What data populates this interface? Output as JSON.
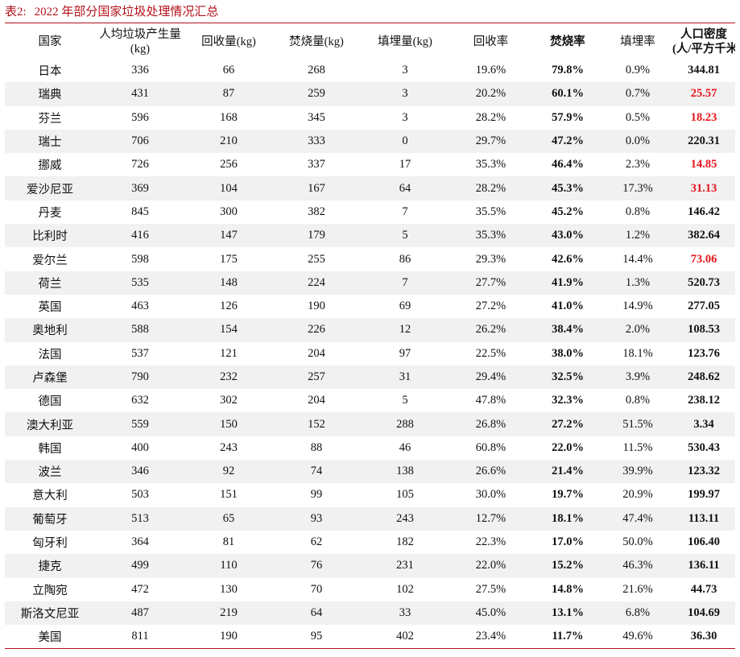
{
  "caption": {
    "number": "表2:",
    "title": "2022 年部分国家垃圾处理情况汇总"
  },
  "colors": {
    "accent": "#b3121c",
    "highlight": "#e8141c",
    "zebra": "#f1f1f1"
  },
  "table": {
    "headers": [
      {
        "text": "国家",
        "bold": false
      },
      {
        "text": "人均垃圾产生量\n(kg)",
        "bold": false
      },
      {
        "text": "回收量(kg)",
        "bold": false
      },
      {
        "text": "焚烧量(kg)",
        "bold": false
      },
      {
        "text": "填埋量(kg)",
        "bold": false
      },
      {
        "text": "回收率",
        "bold": false
      },
      {
        "text": "焚烧率",
        "bold": true
      },
      {
        "text": "填埋率",
        "bold": false
      },
      {
        "text": "人口密度\n(人/平方千米)",
        "bold": true
      }
    ],
    "rows": [
      {
        "country": "日本",
        "per_capita": "336",
        "recycled": "66",
        "incinerated": "268",
        "landfilled": "3",
        "recycle_rate": "19.6%",
        "incineration_rate": "79.8%",
        "landfill_rate": "0.9%",
        "density": "344.81",
        "density_highlight": false
      },
      {
        "country": "瑞典",
        "per_capita": "431",
        "recycled": "87",
        "incinerated": "259",
        "landfilled": "3",
        "recycle_rate": "20.2%",
        "incineration_rate": "60.1%",
        "landfill_rate": "0.7%",
        "density": "25.57",
        "density_highlight": true
      },
      {
        "country": "芬兰",
        "per_capita": "596",
        "recycled": "168",
        "incinerated": "345",
        "landfilled": "3",
        "recycle_rate": "28.2%",
        "incineration_rate": "57.9%",
        "landfill_rate": "0.5%",
        "density": "18.23",
        "density_highlight": true
      },
      {
        "country": "瑞士",
        "per_capita": "706",
        "recycled": "210",
        "incinerated": "333",
        "landfilled": "0",
        "recycle_rate": "29.7%",
        "incineration_rate": "47.2%",
        "landfill_rate": "0.0%",
        "density": "220.31",
        "density_highlight": false
      },
      {
        "country": "挪威",
        "per_capita": "726",
        "recycled": "256",
        "incinerated": "337",
        "landfilled": "17",
        "recycle_rate": "35.3%",
        "incineration_rate": "46.4%",
        "landfill_rate": "2.3%",
        "density": "14.85",
        "density_highlight": true
      },
      {
        "country": "爱沙尼亚",
        "per_capita": "369",
        "recycled": "104",
        "incinerated": "167",
        "landfilled": "64",
        "recycle_rate": "28.2%",
        "incineration_rate": "45.3%",
        "landfill_rate": "17.3%",
        "density": "31.13",
        "density_highlight": true
      },
      {
        "country": "丹麦",
        "per_capita": "845",
        "recycled": "300",
        "incinerated": "382",
        "landfilled": "7",
        "recycle_rate": "35.5%",
        "incineration_rate": "45.2%",
        "landfill_rate": "0.8%",
        "density": "146.42",
        "density_highlight": false
      },
      {
        "country": "比利时",
        "per_capita": "416",
        "recycled": "147",
        "incinerated": "179",
        "landfilled": "5",
        "recycle_rate": "35.3%",
        "incineration_rate": "43.0%",
        "landfill_rate": "1.2%",
        "density": "382.64",
        "density_highlight": false
      },
      {
        "country": "爱尔兰",
        "per_capita": "598",
        "recycled": "175",
        "incinerated": "255",
        "landfilled": "86",
        "recycle_rate": "29.3%",
        "incineration_rate": "42.6%",
        "landfill_rate": "14.4%",
        "density": "73.06",
        "density_highlight": true
      },
      {
        "country": "荷兰",
        "per_capita": "535",
        "recycled": "148",
        "incinerated": "224",
        "landfilled": "7",
        "recycle_rate": "27.7%",
        "incineration_rate": "41.9%",
        "landfill_rate": "1.3%",
        "density": "520.73",
        "density_highlight": false
      },
      {
        "country": "英国",
        "per_capita": "463",
        "recycled": "126",
        "incinerated": "190",
        "landfilled": "69",
        "recycle_rate": "27.2%",
        "incineration_rate": "41.0%",
        "landfill_rate": "14.9%",
        "density": "277.05",
        "density_highlight": false
      },
      {
        "country": "奥地利",
        "per_capita": "588",
        "recycled": "154",
        "incinerated": "226",
        "landfilled": "12",
        "recycle_rate": "26.2%",
        "incineration_rate": "38.4%",
        "landfill_rate": "2.0%",
        "density": "108.53",
        "density_highlight": false
      },
      {
        "country": "法国",
        "per_capita": "537",
        "recycled": "121",
        "incinerated": "204",
        "landfilled": "97",
        "recycle_rate": "22.5%",
        "incineration_rate": "38.0%",
        "landfill_rate": "18.1%",
        "density": "123.76",
        "density_highlight": false
      },
      {
        "country": "卢森堡",
        "per_capita": "790",
        "recycled": "232",
        "incinerated": "257",
        "landfilled": "31",
        "recycle_rate": "29.4%",
        "incineration_rate": "32.5%",
        "landfill_rate": "3.9%",
        "density": "248.62",
        "density_highlight": false
      },
      {
        "country": "德国",
        "per_capita": "632",
        "recycled": "302",
        "incinerated": "204",
        "landfilled": "5",
        "recycle_rate": "47.8%",
        "incineration_rate": "32.3%",
        "landfill_rate": "0.8%",
        "density": "238.12",
        "density_highlight": false
      },
      {
        "country": "澳大利亚",
        "per_capita": "559",
        "recycled": "150",
        "incinerated": "152",
        "landfilled": "288",
        "recycle_rate": "26.8%",
        "incineration_rate": "27.2%",
        "landfill_rate": "51.5%",
        "density": "3.34",
        "density_highlight": false
      },
      {
        "country": "韩国",
        "per_capita": "400",
        "recycled": "243",
        "incinerated": "88",
        "landfilled": "46",
        "recycle_rate": "60.8%",
        "incineration_rate": "22.0%",
        "landfill_rate": "11.5%",
        "density": "530.43",
        "density_highlight": false
      },
      {
        "country": "波兰",
        "per_capita": "346",
        "recycled": "92",
        "incinerated": "74",
        "landfilled": "138",
        "recycle_rate": "26.6%",
        "incineration_rate": "21.4%",
        "landfill_rate": "39.9%",
        "density": "123.32",
        "density_highlight": false
      },
      {
        "country": "意大利",
        "per_capita": "503",
        "recycled": "151",
        "incinerated": "99",
        "landfilled": "105",
        "recycle_rate": "30.0%",
        "incineration_rate": "19.7%",
        "landfill_rate": "20.9%",
        "density": "199.97",
        "density_highlight": false
      },
      {
        "country": "葡萄牙",
        "per_capita": "513",
        "recycled": "65",
        "incinerated": "93",
        "landfilled": "243",
        "recycle_rate": "12.7%",
        "incineration_rate": "18.1%",
        "landfill_rate": "47.4%",
        "density": "113.11",
        "density_highlight": false
      },
      {
        "country": "匈牙利",
        "per_capita": "364",
        "recycled": "81",
        "incinerated": "62",
        "landfilled": "182",
        "recycle_rate": "22.3%",
        "incineration_rate": "17.0%",
        "landfill_rate": "50.0%",
        "density": "106.40",
        "density_highlight": false
      },
      {
        "country": "捷克",
        "per_capita": "499",
        "recycled": "110",
        "incinerated": "76",
        "landfilled": "231",
        "recycle_rate": "22.0%",
        "incineration_rate": "15.2%",
        "landfill_rate": "46.3%",
        "density": "136.11",
        "density_highlight": false
      },
      {
        "country": "立陶宛",
        "per_capita": "472",
        "recycled": "130",
        "incinerated": "70",
        "landfilled": "102",
        "recycle_rate": "27.5%",
        "incineration_rate": "14.8%",
        "landfill_rate": "21.6%",
        "density": "44.73",
        "density_highlight": false
      },
      {
        "country": "斯洛文尼亚",
        "per_capita": "487",
        "recycled": "219",
        "incinerated": "64",
        "landfilled": "33",
        "recycle_rate": "45.0%",
        "incineration_rate": "13.1%",
        "landfill_rate": "6.8%",
        "density": "104.69",
        "density_highlight": false
      },
      {
        "country": "美国",
        "per_capita": "811",
        "recycled": "190",
        "incinerated": "95",
        "landfilled": "402",
        "recycle_rate": "23.4%",
        "incineration_rate": "11.7%",
        "landfill_rate": "49.6%",
        "density": "36.30",
        "density_highlight": false
      }
    ]
  }
}
